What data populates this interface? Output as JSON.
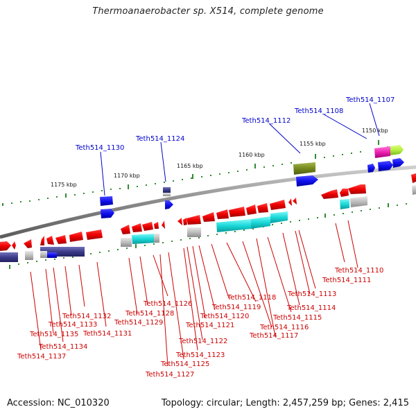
{
  "title": "Thermoanaerobacter sp. X514, complete genome",
  "footer": {
    "accession": "Accession: NC_010320",
    "summary": "Topology: circular; Length: 2,457,259 bp; Genes: 2,415"
  },
  "colors": {
    "backbone": "#8a8a8a",
    "tick": "#2e8b2e",
    "label_red": "#cc0000",
    "label_blue": "#0000cc"
  },
  "scale_ticks": [
    "1175 kbp",
    "1170 kbp",
    "1165 kbp",
    "1160 kbp",
    "1155 kbp",
    "1150 kbp"
  ],
  "gene_labels_blue": [
    "Teth514_1130",
    "Teth514_1124",
    "Teth514_1112",
    "Teth514_1108",
    "Teth514_1107"
  ],
  "gene_labels_red": [
    "Teth514_1110",
    "Teth514_1111",
    "Teth514_1113",
    "Teth514_1114",
    "Teth514_1115",
    "Teth514_1116",
    "Teth514_1117",
    "Teth514_1118",
    "Teth514_1119",
    "Teth514_1120",
    "Teth514_1121",
    "Teth514_1122",
    "Teth514_1123",
    "Teth514_1125",
    "Teth514_1126",
    "Teth514_1127",
    "Teth514_1128",
    "Teth514_1129",
    "Teth514_1131",
    "Teth514_1132",
    "Teth514_1133",
    "Teth514_1134",
    "Teth514_1135",
    "Teth514_1137"
  ]
}
